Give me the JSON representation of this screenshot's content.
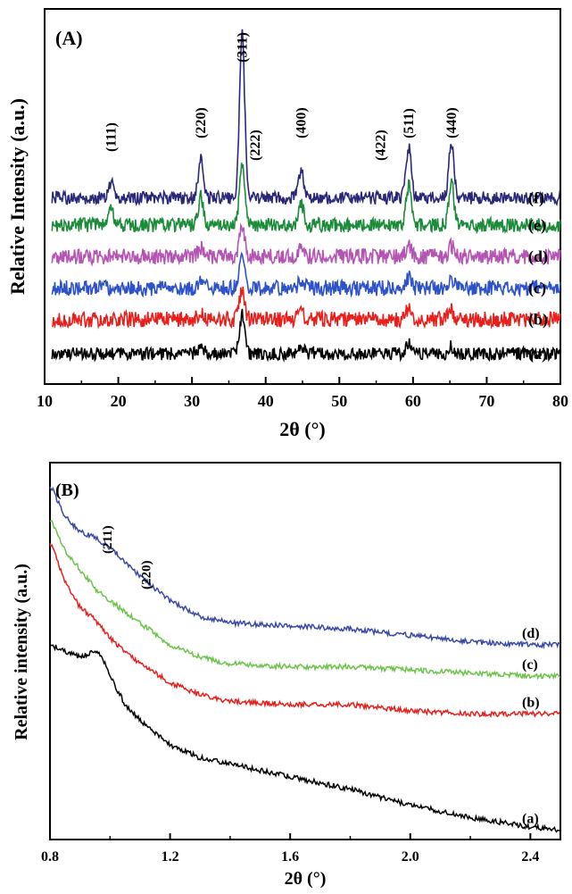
{
  "chart_data": [
    {
      "type": "line",
      "panel_label": "(A)",
      "xlabel": "2θ (°)",
      "ylabel": "Relative Intensity (a.u.)",
      "xlim": [
        10,
        80
      ],
      "xticks": [
        10,
        20,
        30,
        40,
        50,
        60,
        70,
        80
      ],
      "yticks_shown": false,
      "peaks": [
        {
          "label": "(111)",
          "x": 19.0
        },
        {
          "label": "(220)",
          "x": 31.2
        },
        {
          "label": "(311)",
          "x": 36.8
        },
        {
          "label": "(222)",
          "x": 38.6
        },
        {
          "label": "(400)",
          "x": 44.8
        },
        {
          "label": "(422)",
          "x": 55.6
        },
        {
          "label": "(511)",
          "x": 59.4
        },
        {
          "label": "(440)",
          "x": 65.2
        }
      ],
      "series": [
        {
          "name": "(a)",
          "color": "#000000",
          "baseline": 0.3,
          "noise": 0.09,
          "peaks": [
            [
              31.2,
              0.1
            ],
            [
              36.8,
              0.55
            ],
            [
              44.8,
              0.12
            ],
            [
              59.4,
              0.15
            ],
            [
              65.2,
              0.1
            ]
          ]
        },
        {
          "name": "(b)",
          "color": "#e8201c",
          "baseline": 0.78,
          "noise": 0.11,
          "peaks": [
            [
              31.2,
              0.1
            ],
            [
              36.8,
              0.4
            ],
            [
              44.8,
              0.1
            ],
            [
              59.4,
              0.14
            ],
            [
              65.2,
              0.12
            ]
          ]
        },
        {
          "name": "(c)",
          "color": "#2e52c8",
          "baseline": 1.22,
          "noise": 0.11,
          "peaks": [
            [
              31.2,
              0.12
            ],
            [
              36.8,
              0.42
            ],
            [
              44.8,
              0.12
            ],
            [
              59.4,
              0.15
            ],
            [
              65.2,
              0.14
            ]
          ]
        },
        {
          "name": "(d)",
          "color": "#b455b4",
          "baseline": 1.66,
          "noise": 0.11,
          "peaks": [
            [
              31.2,
              0.12
            ],
            [
              36.8,
              0.45
            ],
            [
              44.8,
              0.12
            ],
            [
              59.4,
              0.14
            ],
            [
              65.2,
              0.14
            ]
          ]
        },
        {
          "name": "(e)",
          "color": "#1d8c3a",
          "baseline": 2.1,
          "noise": 0.1,
          "peaks": [
            [
              19.0,
              0.2
            ],
            [
              31.2,
              0.4
            ],
            [
              36.8,
              0.8
            ],
            [
              44.8,
              0.3
            ],
            [
              59.4,
              0.55
            ],
            [
              65.2,
              0.6
            ]
          ]
        },
        {
          "name": "(f)",
          "color": "#2a2878",
          "baseline": 2.48,
          "noise": 0.09,
          "peaks": [
            [
              19.0,
              0.22
            ],
            [
              31.2,
              0.55
            ],
            [
              36.8,
              2.3
            ],
            [
              44.8,
              0.4
            ],
            [
              59.4,
              0.7
            ],
            [
              65.2,
              0.75
            ]
          ]
        }
      ]
    },
    {
      "type": "line",
      "panel_label": "(B)",
      "xlabel": "2θ (°)",
      "ylabel": "Relative intensity (a.u.)",
      "xlim": [
        0.8,
        2.5
      ],
      "xticks": [
        0.8,
        1.2,
        1.6,
        2.0,
        2.4
      ],
      "yticks_shown": false,
      "peaks": [
        {
          "label": "(211)",
          "x": 0.99
        },
        {
          "label": "(220)",
          "x": 1.12
        }
      ],
      "series": [
        {
          "name": "(a)",
          "color": "#000000",
          "x": [
            0.8,
            0.85,
            0.9,
            0.95,
            0.97,
            1.0,
            1.05,
            1.1,
            1.2,
            1.3,
            1.4,
            1.6,
            1.8,
            2.0,
            2.2,
            2.4,
            2.5
          ],
          "y": [
            0.62,
            0.6,
            0.58,
            0.6,
            0.59,
            0.52,
            0.43,
            0.38,
            0.3,
            0.26,
            0.24,
            0.2,
            0.16,
            0.11,
            0.07,
            0.04,
            0.03
          ]
        },
        {
          "name": "(b)",
          "color": "#e8201c",
          "x": [
            0.8,
            0.85,
            0.9,
            0.95,
            1.0,
            1.1,
            1.2,
            1.3,
            1.4,
            1.6,
            1.8,
            2.0,
            2.2,
            2.4,
            2.5
          ],
          "y": [
            0.95,
            0.82,
            0.74,
            0.7,
            0.64,
            0.56,
            0.5,
            0.46,
            0.44,
            0.43,
            0.43,
            0.41,
            0.4,
            0.4,
            0.4
          ]
        },
        {
          "name": "(c)",
          "color": "#6cc44a",
          "x": [
            0.8,
            0.85,
            0.9,
            0.95,
            1.0,
            1.1,
            1.2,
            1.3,
            1.4,
            1.6,
            1.8,
            2.0,
            2.2,
            2.4,
            2.5
          ],
          "y": [
            1.02,
            0.92,
            0.86,
            0.8,
            0.76,
            0.69,
            0.62,
            0.58,
            0.56,
            0.55,
            0.55,
            0.54,
            0.53,
            0.52,
            0.52
          ]
        },
        {
          "name": "(d)",
          "color": "#3a4aa8",
          "x": [
            0.8,
            0.85,
            0.9,
            0.95,
            1.0,
            1.1,
            1.2,
            1.3,
            1.4,
            1.6,
            1.8,
            2.0,
            2.2,
            2.4,
            2.5
          ],
          "y": [
            1.13,
            1.03,
            0.98,
            0.96,
            0.93,
            0.84,
            0.76,
            0.71,
            0.69,
            0.68,
            0.67,
            0.65,
            0.63,
            0.62,
            0.62
          ]
        }
      ]
    }
  ]
}
